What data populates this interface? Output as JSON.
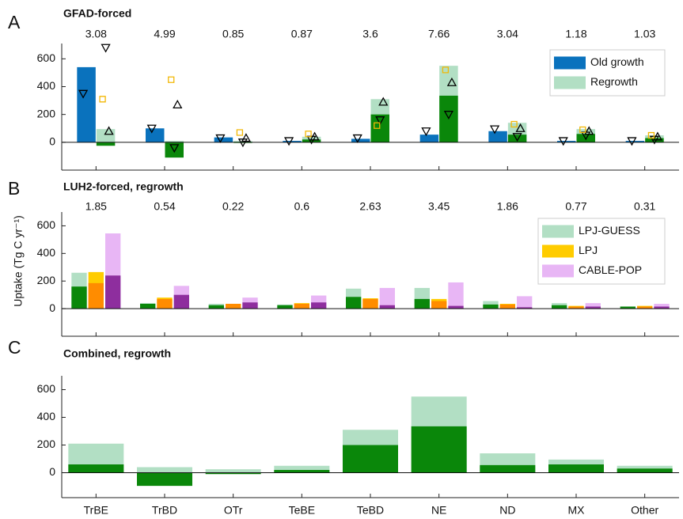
{
  "chart_data": [
    {
      "type": "bar",
      "panel": "A",
      "title": "GFAD-forced",
      "totals": [
        3.08,
        4.99,
        0.85,
        0.87,
        3.6,
        7.66,
        3.04,
        1.18,
        1.03
      ],
      "ylim": [
        -200,
        710
      ],
      "yticks": [
        0,
        200,
        400,
        600
      ],
      "legend": "upper right",
      "series": [
        {
          "name": "Old growth",
          "color": "#0a72bd",
          "values": [
            540,
            100,
            35,
            10,
            25,
            55,
            80,
            10,
            10
          ]
        },
        {
          "name": "Regrowth",
          "color": "#b2dfc4",
          "values": [
            95,
            10,
            10,
            40,
            310,
            550,
            140,
            95,
            50
          ],
          "inner": {
            "color": "#0a870a",
            "values": [
              -25,
              -110,
              -5,
              20,
              200,
              335,
              55,
              60,
              30
            ]
          }
        }
      ],
      "markers": [
        {
          "symbol": "triangle-down",
          "color": "#000000",
          "on_series": 0,
          "values": [
            350,
            100,
            30,
            10,
            30,
            80,
            95,
            10,
            10
          ]
        },
        {
          "symbol": "triangle-down",
          "color": "#000000",
          "on_series": 1,
          "values": [
            680,
            -40,
            0,
            20,
            160,
            200,
            40,
            50,
            20
          ]
        },
        {
          "symbol": "triangle-up",
          "color": "#000000",
          "on_series": 1,
          "values": [
            80,
            270,
            30,
            40,
            290,
            430,
            100,
            80,
            40
          ]
        },
        {
          "symbol": "square",
          "color": "#f2b705",
          "on_series": 1,
          "values": [
            310,
            450,
            70,
            60,
            120,
            520,
            130,
            90,
            50
          ]
        }
      ]
    },
    {
      "type": "bar",
      "panel": "B",
      "title": "LUH2-forced, regrowth",
      "ylabel": "Uptake (Tg C yr⁻¹)",
      "totals": [
        1.85,
        0.54,
        0.22,
        0.6,
        2.63,
        3.45,
        1.86,
        0.77,
        0.31
      ],
      "ylim": [
        -200,
        700
      ],
      "yticks": [
        0,
        200,
        400,
        600
      ],
      "legend": "upper right",
      "series": [
        {
          "name": "LPJ-GUESS",
          "color": "#b2dfc4",
          "values": [
            260,
            40,
            35,
            30,
            145,
            150,
            55,
            40,
            15
          ],
          "inner": {
            "color": "#0a870a",
            "values": [
              160,
              35,
              25,
              25,
              85,
              70,
              30,
              25,
              15
            ]
          }
        },
        {
          "name": "LPJ",
          "color": "#ffcc00",
          "values": [
            265,
            80,
            35,
            40,
            75,
            70,
            35,
            20,
            20
          ],
          "inner": {
            "color": "#ff8c00",
            "values": [
              185,
              70,
              35,
              35,
              70,
              55,
              30,
              15,
              15
            ]
          }
        },
        {
          "name": "CABLE-POP",
          "color": "#e8b6f5",
          "values": [
            545,
            165,
            80,
            95,
            150,
            190,
            90,
            40,
            35
          ],
          "inner": {
            "color": "#8e2e9e",
            "values": [
              240,
              100,
              45,
              45,
              25,
              20,
              10,
              15,
              15
            ]
          }
        }
      ]
    },
    {
      "type": "bar",
      "panel": "C",
      "title": "Combined, regrowth",
      "categories": [
        "TrBE",
        "TrBD",
        "OTr",
        "TeBE",
        "TeBD",
        "NE",
        "ND",
        "MX",
        "Other"
      ],
      "ylim": [
        -180,
        700
      ],
      "yticks": [
        0,
        200,
        400,
        600
      ],
      "series": [
        {
          "color": "#b2dfc4",
          "values": [
            210,
            40,
            25,
            50,
            310,
            550,
            140,
            95,
            50
          ],
          "inner": {
            "color": "#0a870a",
            "values": [
              60,
              -95,
              -10,
              20,
              200,
              335,
              55,
              60,
              30
            ]
          }
        }
      ]
    }
  ]
}
